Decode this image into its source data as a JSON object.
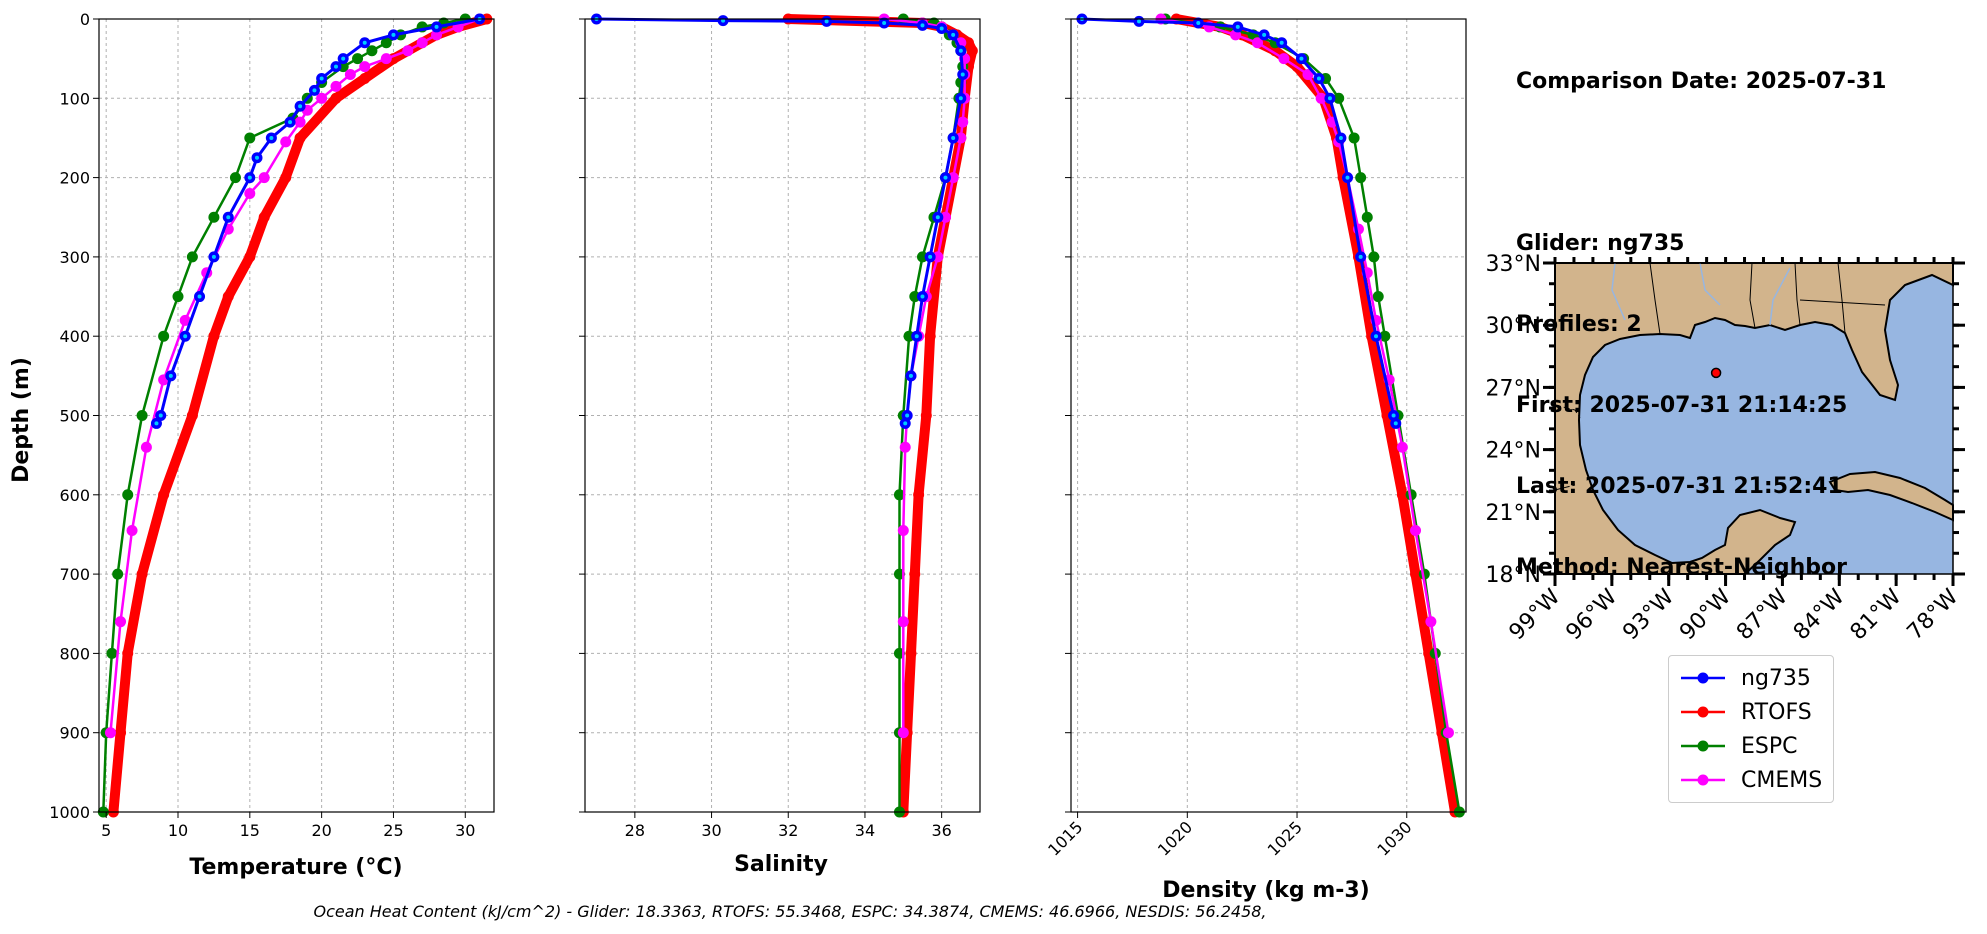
{
  "info": {
    "comparison_date": "Comparison Date: 2025-07-31",
    "glider": "Glider: ng735",
    "profiles": "Profiles: 2",
    "first": "First: 2025-07-31 21:14:25",
    "last": "Last: 2025-07-31 21:52:41",
    "method": "Method: Nearest-Neighbor"
  },
  "footer": "Ocean Heat Content (kJ/cm^2) - Glider: 18.3363,  RTOFS: 55.3468,  ESPC: 34.3874,  CMEMS: 46.6966,  NESDIS: 56.2458,",
  "colors": {
    "ng735": "#0000ff",
    "RTOFS": "#ff0000",
    "ESPC": "#008000",
    "CMEMS": "#ff00ff",
    "glider_dots": "#00ccff",
    "land": "#d2b48c",
    "ocean": "#97b6e1",
    "station": "#ff0000"
  },
  "legend": [
    {
      "name": "ng735",
      "color": "#0000ff"
    },
    {
      "name": "RTOFS",
      "color": "#ff0000"
    },
    {
      "name": "ESPC",
      "color": "#008000"
    },
    {
      "name": "CMEMS",
      "color": "#ff00ff"
    }
  ],
  "chart_data": [
    {
      "type": "line",
      "xlabel": "Temperature (°C)",
      "ylabel": "Depth (m)",
      "xlim": [
        4.5,
        32
      ],
      "ylim": [
        1000,
        0
      ],
      "xticks": [
        5,
        10,
        15,
        20,
        25,
        30
      ],
      "yticks": [
        0,
        100,
        200,
        300,
        400,
        500,
        600,
        700,
        800,
        900,
        1000
      ],
      "series": [
        {
          "name": "ng735",
          "depth": [
            0,
            10,
            20,
            30,
            50,
            60,
            75,
            90,
            110,
            130,
            150,
            175,
            200,
            250,
            300,
            350,
            400,
            450,
            500,
            510
          ],
          "values": [
            31,
            28,
            25,
            23,
            21.5,
            21,
            20,
            19.5,
            18.5,
            17.8,
            16.5,
            15.5,
            15,
            13.5,
            12.5,
            11.5,
            10.5,
            9.5,
            8.8,
            8.5
          ]
        },
        {
          "name": "RTOFS",
          "depth": [
            0,
            10,
            20,
            30,
            50,
            75,
            100,
            150,
            200,
            250,
            300,
            350,
            400,
            500,
            600,
            700,
            800,
            900,
            1000
          ],
          "values": [
            31.5,
            29.5,
            28,
            27,
            25,
            23,
            21,
            18.5,
            17.5,
            16,
            15,
            13.5,
            12.5,
            11,
            9,
            7.5,
            6.5,
            6,
            5.5
          ]
        },
        {
          "name": "ESPC",
          "depth": [
            0,
            5,
            10,
            20,
            30,
            40,
            50,
            60,
            80,
            100,
            125,
            150,
            200,
            250,
            300,
            350,
            400,
            500,
            600,
            700,
            800,
            900,
            1000
          ],
          "values": [
            30,
            28.5,
            27,
            25.5,
            24.5,
            23.5,
            22.5,
            21.5,
            20,
            19,
            18,
            15,
            14,
            12.5,
            11,
            10,
            9,
            7.5,
            6.5,
            5.8,
            5.4,
            5,
            4.8
          ]
        },
        {
          "name": "CMEMS",
          "depth": [
            0,
            10,
            20,
            30,
            40,
            50,
            60,
            70,
            85,
            100,
            115,
            130,
            155,
            200,
            220,
            265,
            320,
            380,
            455,
            540,
            645,
            760,
            900
          ],
          "values": [
            31,
            29.5,
            28,
            27,
            26,
            24.5,
            23,
            22,
            21,
            20,
            19,
            18.5,
            17.5,
            16,
            15,
            13.5,
            12,
            10.5,
            9,
            7.8,
            6.8,
            6,
            5.3
          ]
        }
      ]
    },
    {
      "type": "line",
      "xlabel": "Salinity",
      "ylabel": "",
      "xlim": [
        26.7,
        37
      ],
      "ylim": [
        1000,
        0
      ],
      "xticks": [
        28,
        30,
        32,
        34,
        36
      ],
      "yticks": [
        0,
        100,
        200,
        300,
        400,
        500,
        600,
        700,
        800,
        900,
        1000
      ],
      "series": [
        {
          "name": "ng735",
          "depth": [
            0,
            2,
            3,
            5,
            8,
            12,
            20,
            40,
            70,
            100,
            150,
            200,
            250,
            300,
            350,
            400,
            450,
            500,
            510
          ],
          "values": [
            27,
            30.3,
            33,
            34.5,
            35.5,
            36,
            36.3,
            36.5,
            36.55,
            36.5,
            36.3,
            36.1,
            35.9,
            35.7,
            35.5,
            35.35,
            35.2,
            35.1,
            35.05
          ]
        },
        {
          "name": "RTOFS",
          "depth": [
            0,
            5,
            10,
            20,
            30,
            40,
            60,
            100,
            150,
            200,
            250,
            300,
            400,
            500,
            600,
            700,
            800,
            900,
            1000
          ],
          "values": [
            32,
            35.5,
            36,
            36.4,
            36.7,
            36.8,
            36.7,
            36.6,
            36.5,
            36.3,
            36.1,
            35.9,
            35.7,
            35.6,
            35.4,
            35.3,
            35.2,
            35.1,
            35.0
          ]
        },
        {
          "name": "ESPC",
          "depth": [
            0,
            5,
            10,
            20,
            30,
            40,
            60,
            80,
            100,
            150,
            200,
            250,
            300,
            350,
            400,
            500,
            600,
            700,
            800,
            900,
            1000
          ],
          "values": [
            35,
            35.8,
            36,
            36.2,
            36.4,
            36.5,
            36.55,
            36.5,
            36.45,
            36.3,
            36.1,
            35.8,
            35.5,
            35.3,
            35.15,
            35.0,
            34.9,
            34.9,
            34.9,
            34.9,
            34.9
          ]
        },
        {
          "name": "CMEMS",
          "depth": [
            0,
            5,
            10,
            20,
            30,
            50,
            70,
            100,
            130,
            150,
            200,
            250,
            300,
            350,
            400,
            450,
            500,
            540,
            645,
            760,
            900
          ],
          "values": [
            34.5,
            35.5,
            36,
            36.3,
            36.5,
            36.6,
            36.6,
            36.6,
            36.55,
            36.5,
            36.3,
            36.1,
            35.9,
            35.6,
            35.4,
            35.2,
            35.1,
            35.05,
            35.0,
            35.0,
            35.0
          ]
        }
      ]
    },
    {
      "type": "line",
      "xlabel": "Density (kg m-3)",
      "ylabel": "",
      "xlim": [
        1014.7,
        1032.7
      ],
      "ylim": [
        1000,
        0
      ],
      "xticks": [
        1015,
        1020,
        1025,
        1030
      ],
      "yticks": [
        0,
        100,
        200,
        300,
        400,
        500,
        600,
        700,
        800,
        900,
        1000
      ],
      "series": [
        {
          "name": "ng735",
          "depth": [
            0,
            3,
            5,
            10,
            20,
            30,
            50,
            75,
            100,
            150,
            200,
            300,
            400,
            500,
            510
          ],
          "values": [
            1015.2,
            1017.8,
            1020.5,
            1022.3,
            1023.5,
            1024.3,
            1025.2,
            1026,
            1026.5,
            1027,
            1027.3,
            1027.9,
            1028.6,
            1029.4,
            1029.5
          ]
        },
        {
          "name": "RTOFS",
          "depth": [
            0,
            10,
            20,
            40,
            60,
            100,
            150,
            200,
            300,
            400,
            500,
            600,
            700,
            800,
            900,
            1000
          ],
          "values": [
            1019.5,
            1021.5,
            1022.5,
            1024,
            1025,
            1026.2,
            1026.8,
            1027.1,
            1027.8,
            1028.4,
            1029.1,
            1029.8,
            1030.4,
            1031,
            1031.6,
            1032.2
          ]
        },
        {
          "name": "ESPC",
          "depth": [
            0,
            10,
            20,
            30,
            50,
            75,
            100,
            150,
            200,
            250,
            300,
            350,
            400,
            500,
            600,
            700,
            800,
            900,
            1000
          ],
          "values": [
            1019,
            1021.5,
            1023,
            1024,
            1025.3,
            1026.3,
            1026.9,
            1027.6,
            1027.9,
            1028.2,
            1028.5,
            1028.7,
            1029,
            1029.6,
            1030.2,
            1030.8,
            1031.3,
            1031.8,
            1032.4
          ]
        },
        {
          "name": "CMEMS",
          "depth": [
            0,
            10,
            20,
            30,
            50,
            70,
            100,
            130,
            155,
            200,
            265,
            320,
            380,
            455,
            540,
            645,
            760,
            900
          ],
          "values": [
            1018.8,
            1021,
            1022.2,
            1023.2,
            1024.4,
            1025.5,
            1026.1,
            1026.6,
            1026.9,
            1027.3,
            1027.8,
            1028.2,
            1028.6,
            1029.2,
            1029.8,
            1030.4,
            1031.1,
            1031.9
          ]
        }
      ]
    },
    {
      "type": "map",
      "lat_ticks": [
        "33°N",
        "30°N",
        "27°N",
        "24°N",
        "21°N",
        "18°N"
      ],
      "lon_ticks": [
        "99°W",
        "96°W",
        "93°W",
        "90°W",
        "87°W",
        "84°W",
        "81°W",
        "78°W"
      ],
      "lon_range": [
        -99,
        -78
      ],
      "lat_range": [
        18,
        33
      ],
      "station": {
        "lon": -90.5,
        "lat": 27.7
      }
    }
  ]
}
